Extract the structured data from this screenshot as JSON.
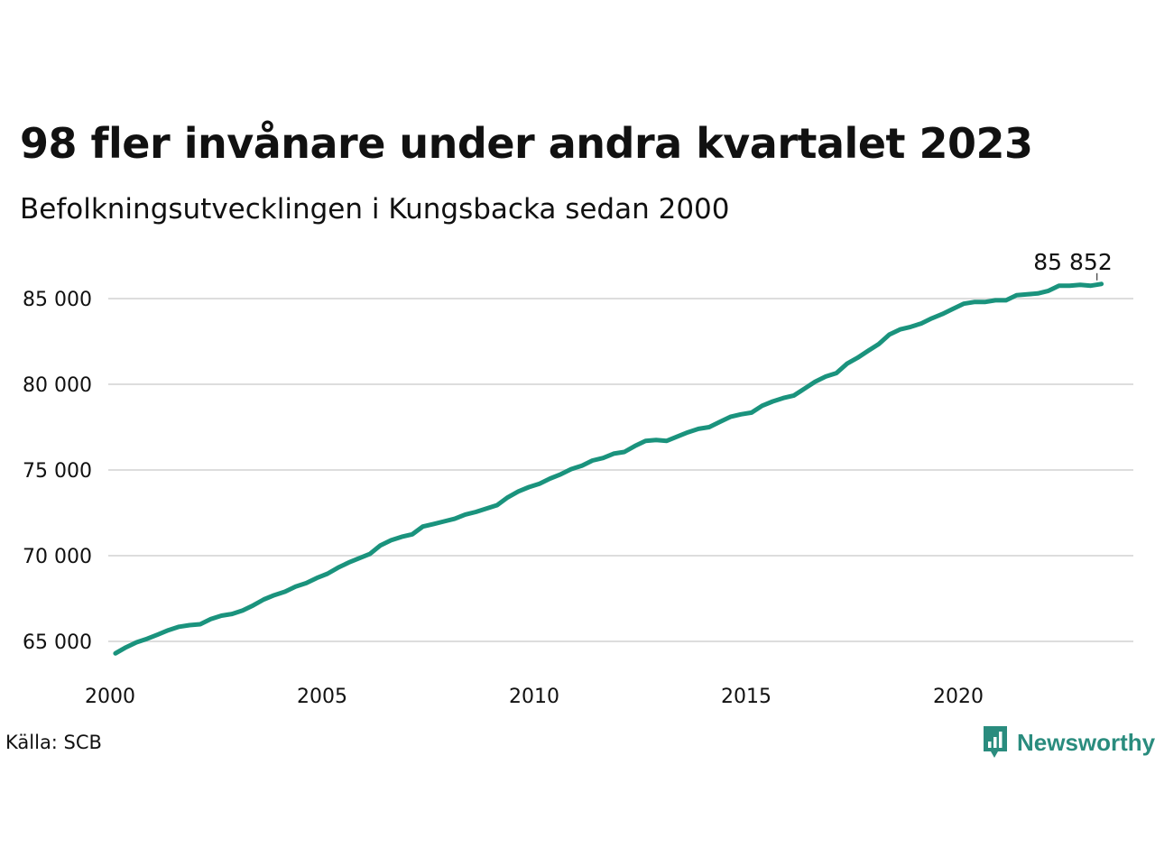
{
  "header": {
    "title": "98 fler invånare under andra kvartalet 2023",
    "subtitle": "Befolkningsutvecklingen i Kungsbacka sedan 2000"
  },
  "footer": {
    "source": "Källa: SCB",
    "brand": "Newsworthy"
  },
  "colors": {
    "line": "#1a937d",
    "grid": "#dddddd",
    "brand": "#2a8c7e"
  },
  "icons": {
    "brand_logo": "newsworthy-logo-icon"
  },
  "chart_data": {
    "type": "line",
    "title": "98 fler invånare under andra kvartalet 2023",
    "subtitle": "Befolkningsutvecklingen i Kungsbacka sedan 2000",
    "xlabel": "",
    "ylabel": "",
    "x_ticks": [
      2000,
      2005,
      2010,
      2015,
      2020
    ],
    "x_tick_labels": [
      "2000",
      "2005",
      "2010",
      "2015",
      "2020"
    ],
    "y_ticks": [
      65000,
      70000,
      75000,
      80000,
      85000
    ],
    "y_tick_labels": [
      "65 000",
      "70 000",
      "75 000",
      "80 000",
      "85 000"
    ],
    "xlim": [
      2000,
      2024.5
    ],
    "ylim": [
      63000,
      88000
    ],
    "grid": true,
    "legend": "none",
    "annotation": {
      "label": "85 852",
      "x": 2023.25,
      "y": 85852
    },
    "series": [
      {
        "x": [
          2000.125,
          2000.375,
          2000.625,
          2000.875,
          2001.125,
          2001.375,
          2001.625,
          2001.875,
          2002.125,
          2002.375,
          2002.625,
          2002.875,
          2003.125,
          2003.375,
          2003.625,
          2003.875,
          2004.125,
          2004.375,
          2004.625,
          2004.875,
          2005.125,
          2005.375,
          2005.625,
          2005.875,
          2006.125,
          2006.375,
          2006.625,
          2006.875,
          2007.125,
          2007.375,
          2007.625,
          2007.875,
          2008.125,
          2008.375,
          2008.625,
          2008.875,
          2009.125,
          2009.375,
          2009.625,
          2009.875,
          2010.125,
          2010.375,
          2010.625,
          2010.875,
          2011.125,
          2011.375,
          2011.625,
          2011.875,
          2012.125,
          2012.375,
          2012.625,
          2012.875,
          2013.125,
          2013.375,
          2013.625,
          2013.875,
          2014.125,
          2014.375,
          2014.625,
          2014.875,
          2015.125,
          2015.375,
          2015.625,
          2015.875,
          2016.125,
          2016.375,
          2016.625,
          2016.875,
          2017.125,
          2017.375,
          2017.625,
          2017.875,
          2018.125,
          2018.375,
          2018.625,
          2018.875,
          2019.125,
          2019.375,
          2019.625,
          2019.875,
          2020.125,
          2020.375,
          2020.625,
          2020.875,
          2021.125,
          2021.375,
          2021.625,
          2021.875,
          2022.125,
          2022.375,
          2022.625,
          2022.875,
          2023.125,
          2023.375
        ],
        "y": [
          64300,
          64650,
          64950,
          65150,
          65400,
          65650,
          65850,
          65950,
          66000,
          66300,
          66500,
          66600,
          66800,
          67100,
          67450,
          67700,
          67900,
          68200,
          68400,
          68700,
          68950,
          69300,
          69600,
          69850,
          70100,
          70600,
          70900,
          71100,
          71250,
          71700,
          71850,
          72000,
          72150,
          72400,
          72550,
          72750,
          72950,
          73400,
          73750,
          74000,
          74200,
          74500,
          74750,
          75050,
          75250,
          75550,
          75700,
          75950,
          76050,
          76400,
          76700,
          76750,
          76700,
          76950,
          77200,
          77400,
          77500,
          77800,
          78100,
          78250,
          78350,
          78750,
          79000,
          79200,
          79350,
          79750,
          80150,
          80450,
          80650,
          81200,
          81550,
          81950,
          82350,
          82900,
          83200,
          83350,
          83550,
          83850,
          84100,
          84400,
          84700,
          84800,
          84800,
          84900,
          84900,
          85200,
          85250,
          85300,
          85450,
          85750,
          85750,
          85800,
          85754,
          85852
        ]
      }
    ]
  }
}
